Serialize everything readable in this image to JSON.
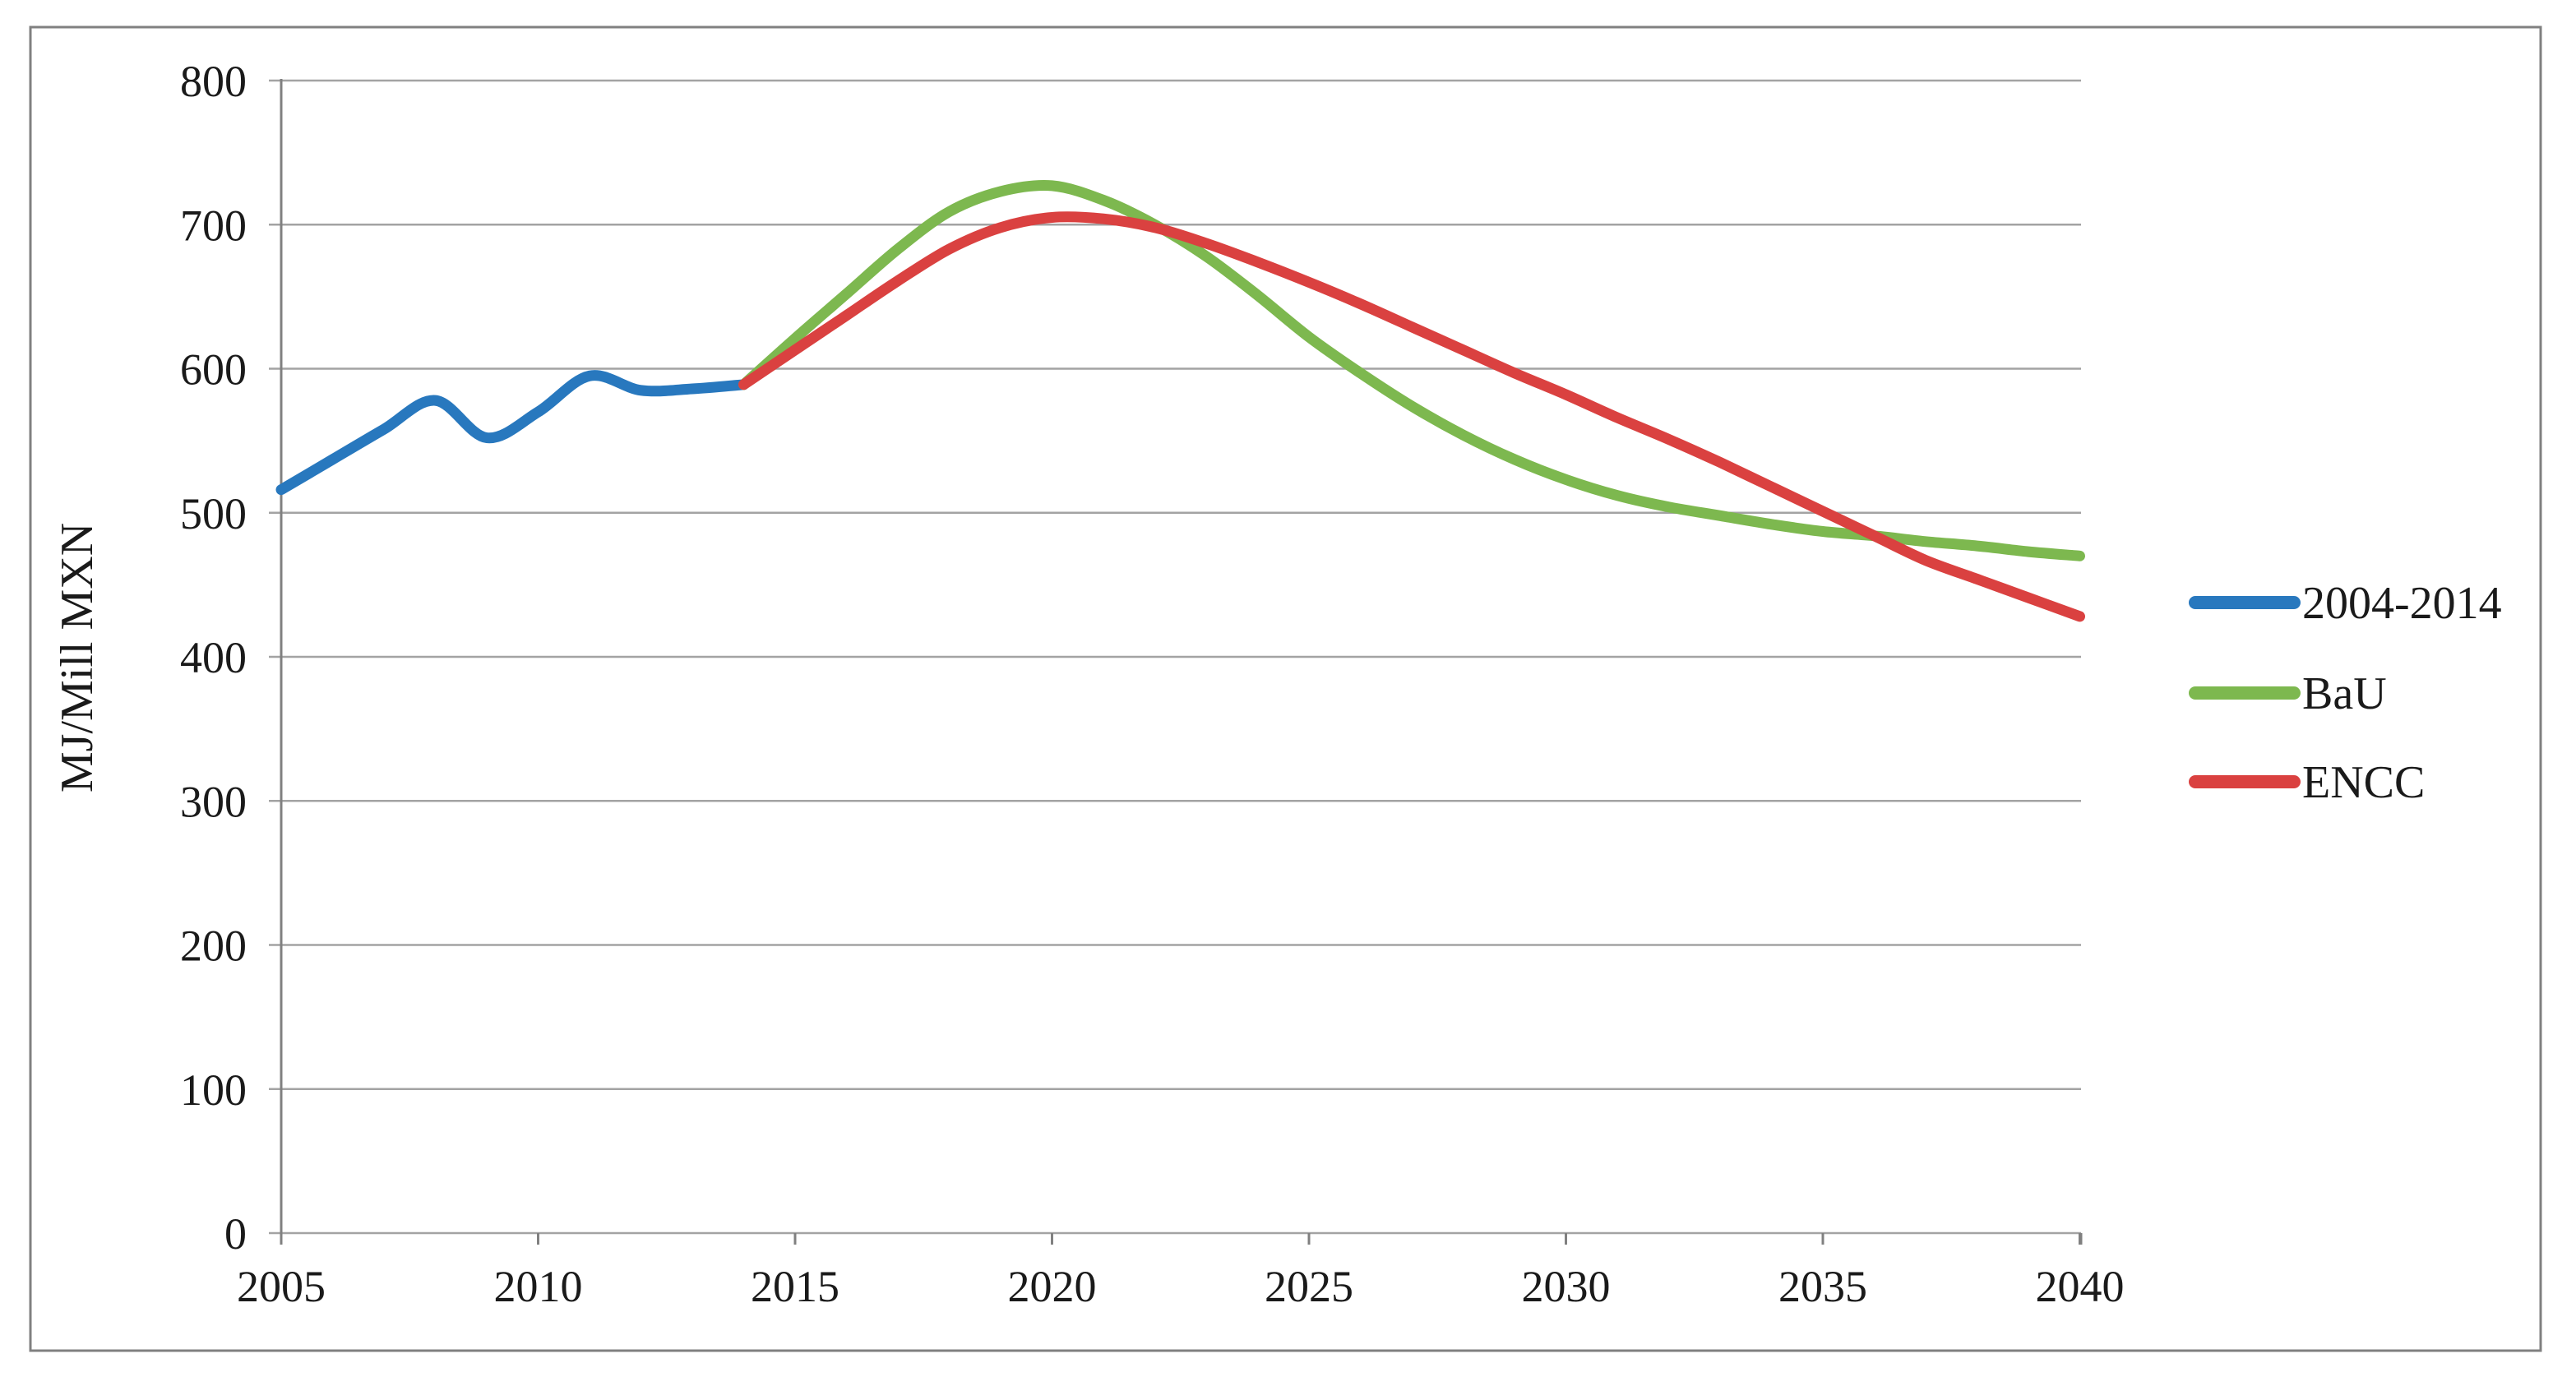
{
  "figure": {
    "background": "#ffffff",
    "border_color": "#808080",
    "grid_color": "#a3a3a3",
    "axis_color": "#808080",
    "text_color": "#1a1a1a"
  },
  "chart_data": {
    "type": "line",
    "title": "",
    "xlabel": "",
    "ylabel": "MJ/Mill MXN",
    "ylim": [
      0,
      800
    ],
    "xlim": [
      2005,
      2040
    ],
    "y_ticks": [
      0,
      100,
      200,
      300,
      400,
      500,
      600,
      700,
      800
    ],
    "x_ticks": [
      2005,
      2010,
      2015,
      2020,
      2025,
      2030,
      2035,
      2040
    ],
    "grid": "horizontal",
    "legend_position": "right-center",
    "series": [
      {
        "name": "2004-2014",
        "color": "#2878be",
        "x": [
          2005,
          2006,
          2007,
          2008,
          2009,
          2010,
          2011,
          2012,
          2013,
          2014
        ],
        "values": [
          516,
          537,
          558,
          578,
          552,
          570,
          595,
          585,
          586,
          589
        ]
      },
      {
        "name": "BaU",
        "color": "#7db84f",
        "x": [
          2014,
          2015,
          2016,
          2017,
          2018,
          2019,
          2020,
          2021,
          2022,
          2023,
          2024,
          2025,
          2026,
          2027,
          2028,
          2029,
          2030,
          2031,
          2032,
          2033,
          2034,
          2035,
          2036,
          2037,
          2038,
          2039,
          2040
        ],
        "values": [
          589,
          621,
          652,
          683,
          709,
          723,
          727,
          717,
          700,
          678,
          651,
          622,
          597,
          574,
          554,
          537,
          523,
          512,
          504,
          498,
          492,
          487,
          484,
          480,
          477,
          473,
          470
        ]
      },
      {
        "name": "ENCC",
        "color": "#da4140",
        "x": [
          2014,
          2015,
          2016,
          2017,
          2018,
          2019,
          2020,
          2021,
          2022,
          2023,
          2024,
          2025,
          2026,
          2027,
          2028,
          2029,
          2030,
          2031,
          2032,
          2033,
          2034,
          2035,
          2036,
          2037,
          2038,
          2039,
          2040
        ],
        "values": [
          589,
          613,
          637,
          661,
          683,
          698,
          705,
          704,
          698,
          687,
          674,
          660,
          645,
          629,
          613,
          597,
          582,
          566,
          551,
          535,
          518,
          501,
          484,
          467,
          454,
          441,
          428
        ]
      }
    ]
  }
}
